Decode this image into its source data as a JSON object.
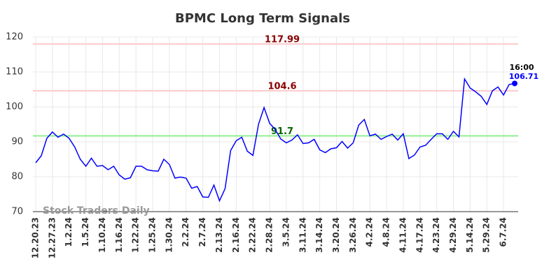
{
  "chart_data": {
    "type": "line",
    "title": "BPMC Long Term Signals",
    "categories": [
      "12.20.23",
      null,
      null,
      "12.27.23",
      null,
      null,
      "1.2.24",
      null,
      null,
      "1.5.24",
      null,
      null,
      "1.10.24",
      null,
      null,
      "1.16.24",
      null,
      null,
      "1.22.24",
      null,
      null,
      "1.25.24",
      null,
      null,
      "1.30.24",
      null,
      null,
      "2.2.24",
      null,
      null,
      "2.7.24",
      null,
      null,
      "2.13.24",
      null,
      null,
      "2.16.24",
      null,
      null,
      "2.22.24",
      null,
      null,
      "2.28.24",
      null,
      null,
      "3.5.24",
      null,
      null,
      "3.11.24",
      null,
      null,
      "3.14.24",
      null,
      null,
      "3.20.24",
      null,
      null,
      "3.26.24",
      null,
      null,
      "4.2.24",
      null,
      null,
      "4.8.24",
      null,
      null,
      "4.11.24",
      null,
      null,
      "4.17.24",
      null,
      null,
      "4.23.24",
      null,
      null,
      "4.29.24",
      null,
      null,
      "5.14.24",
      null,
      null,
      "5.29.24",
      null,
      null,
      "6.7.24",
      null,
      null
    ],
    "values": [
      84,
      86,
      91,
      92.8,
      91.3,
      92.2,
      91,
      88.5,
      85,
      83,
      85.3,
      83,
      83.2,
      82,
      83,
      80.5,
      79.3,
      79.7,
      83,
      83,
      82,
      81.7,
      81.6,
      85,
      83.5,
      79.6,
      79.9,
      79.6,
      76.7,
      77.2,
      74.2,
      74.1,
      77.6,
      73.1,
      76.6,
      87.5,
      90.3,
      91.3,
      87.3,
      86.1,
      95,
      99.8,
      95.3,
      93.5,
      90.8,
      89.7,
      90.5,
      92,
      89.5,
      89.7,
      90.7,
      87.7,
      86.9,
      88,
      88.3,
      90.1,
      88.2,
      89.7,
      94.8,
      96.4,
      91.7,
      92.2,
      90.7,
      91.5,
      92.2,
      90.5,
      92.3,
      85.2,
      86.2,
      88.5,
      89,
      90.7,
      92.3,
      92.3,
      90.7,
      93,
      91.4,
      108,
      105.4,
      104.3,
      103,
      100.7,
      104.6,
      105.7,
      103.4,
      106.4,
      106.71
    ],
    "color": "#0000ff",
    "ylim": [
      70,
      120
    ],
    "yticks": [
      70,
      80,
      90,
      100,
      110,
      120
    ],
    "grid": true,
    "hlines": [
      {
        "value": 117.99,
        "color": "#ffcccc",
        "label_color": "#8b0000"
      },
      {
        "value": 104.6,
        "color": "#ffcccc",
        "label_color": "#8b0000"
      },
      {
        "value": 91.7,
        "color": "#90ee90",
        "label_color": "#006400"
      }
    ],
    "last_time": "16:00",
    "watermark": "Stock Traders Daily"
  }
}
